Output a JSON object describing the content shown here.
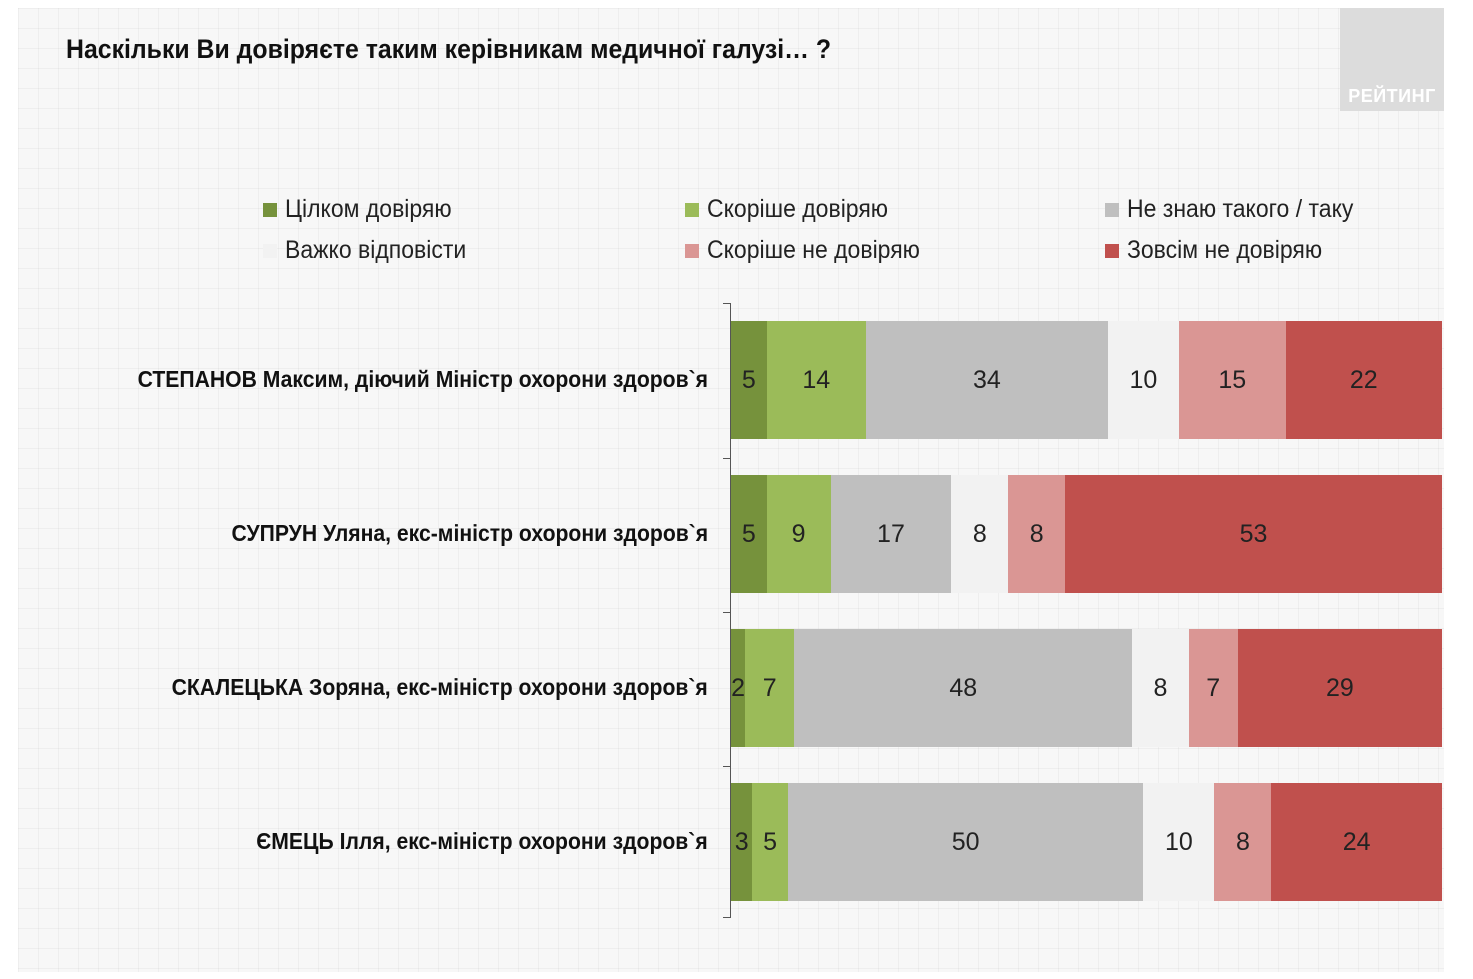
{
  "title": "Наскільки Ви довіряєте таким керівникам медичної галузі… ?",
  "logo": {
    "text": "РЕЙТИНГ"
  },
  "chart_data": {
    "type": "bar",
    "orientation": "horizontal",
    "stacked": true,
    "percent_stacked": true,
    "title": "Наскільки Ви довіряєте таким керівникам медичної галузі… ?",
    "legend_position": "top",
    "categories": [
      "СТЕПАНОВ Максим, діючий Міністр охорони здоров`я",
      "СУПРУН Уляна, екс-міністр охорони здоров`я",
      "СКАЛЕЦЬКА Зоряна, екс-міністр охорони здоров`я",
      "ЄМЕЦЬ Ілля, екс-міністр охорони здоров`я"
    ],
    "series": [
      {
        "name": "Цілком довіряю",
        "color": "#76923c",
        "values": [
          5,
          5,
          2,
          3
        ]
      },
      {
        "name": "Скоріше довіряю",
        "color": "#9bbb59",
        "values": [
          14,
          9,
          7,
          5
        ]
      },
      {
        "name": "Не знаю такого / таку",
        "color": "#bfbfbf",
        "values": [
          34,
          17,
          48,
          50
        ]
      },
      {
        "name": "Важко відповісти",
        "color": "#f2f2f2",
        "values": [
          10,
          8,
          8,
          10
        ]
      },
      {
        "name": "Скоріше не довіряю",
        "color": "#da9694",
        "values": [
          15,
          8,
          7,
          8
        ]
      },
      {
        "name": "Зовсім не довіряю",
        "color": "#c0504d",
        "values": [
          22,
          53,
          29,
          24
        ]
      }
    ]
  }
}
